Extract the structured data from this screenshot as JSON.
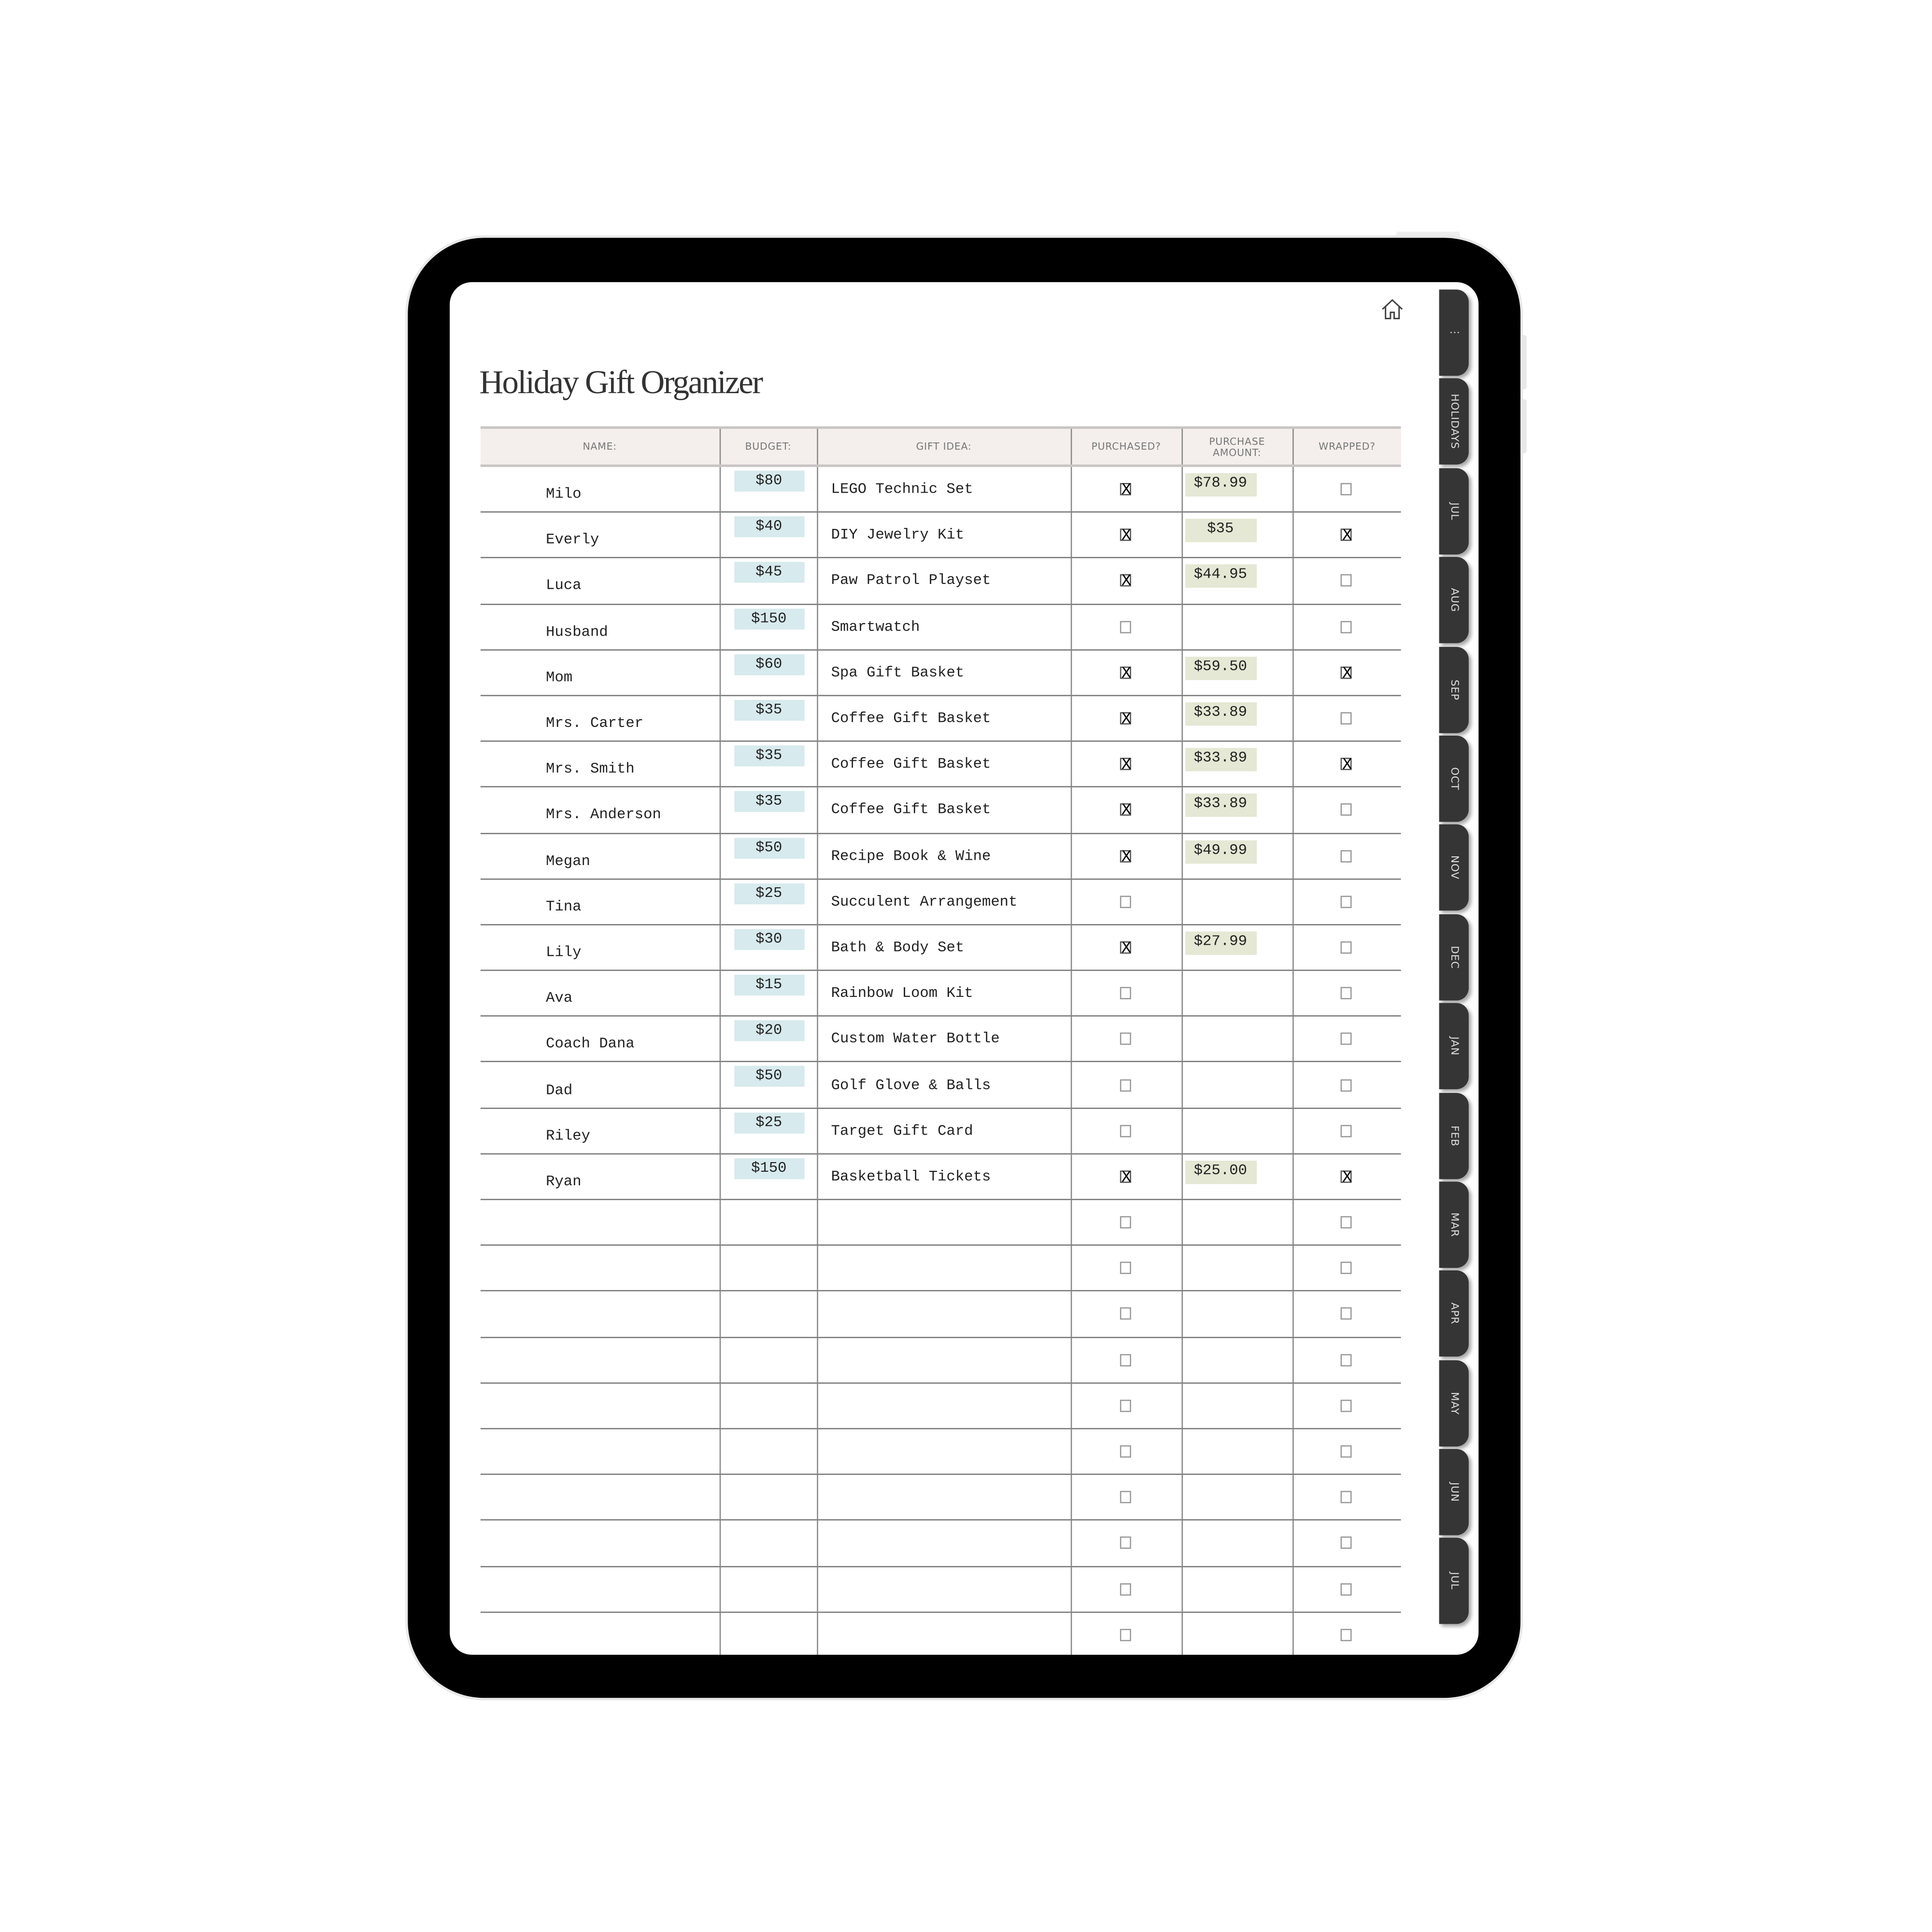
{
  "title": "Holiday Gift Organizer",
  "icons": {
    "home": "home-icon",
    "menu": "more-dots-icon"
  },
  "colors": {
    "budget_chip": "#d7eaee",
    "amount_chip": "#e4e8d4",
    "header_bg": "#f4eeec",
    "tab_bg": "#353535"
  },
  "tabs": [
    "⋮",
    "HOLIDAYS",
    "JUL",
    "AUG",
    "SEP",
    "OCT",
    "NOV",
    "DEC",
    "JAN",
    "FEB",
    "MAR",
    "APR",
    "MAY",
    "JUN",
    "JUL"
  ],
  "table": {
    "headers": {
      "name": "NAME:",
      "budget": "BUDGET:",
      "gift": "GIFT IDEA:",
      "purchased": "PURCHASED?",
      "amount_line1": "PURCHASE",
      "amount_line2": "AMOUNT:",
      "wrapped": "WRAPPED?"
    },
    "checkmark": "X",
    "rows": [
      {
        "name": "Milo",
        "budget": "$80",
        "gift": "LEGO Technic Set",
        "purchased": true,
        "amount": "$78.99",
        "wrapped": false
      },
      {
        "name": "Everly",
        "budget": "$40",
        "gift": "DIY Jewelry Kit",
        "purchased": true,
        "amount": "$35",
        "wrapped": true
      },
      {
        "name": "Luca",
        "budget": "$45",
        "gift": "Paw Patrol Playset",
        "purchased": true,
        "amount": "$44.95",
        "wrapped": false
      },
      {
        "name": "Husband",
        "budget": "$150",
        "gift": "Smartwatch",
        "purchased": false,
        "amount": "",
        "wrapped": false
      },
      {
        "name": "Mom",
        "budget": "$60",
        "gift": "Spa Gift Basket",
        "purchased": true,
        "amount": "$59.50",
        "wrapped": true
      },
      {
        "name": "Mrs. Carter",
        "budget": "$35",
        "gift": "Coffee Gift Basket",
        "purchased": true,
        "amount": "$33.89",
        "wrapped": false
      },
      {
        "name": "Mrs. Smith",
        "budget": "$35",
        "gift": "Coffee Gift Basket",
        "purchased": true,
        "amount": "$33.89",
        "wrapped": true
      },
      {
        "name": "Mrs. Anderson",
        "budget": "$35",
        "gift": "Coffee Gift Basket",
        "purchased": true,
        "amount": "$33.89",
        "wrapped": false
      },
      {
        "name": "Megan",
        "budget": "$50",
        "gift": "Recipe Book & Wine",
        "purchased": true,
        "amount": "$49.99",
        "wrapped": false
      },
      {
        "name": "Tina",
        "budget": "$25",
        "gift": "Succulent Arrangement",
        "purchased": false,
        "amount": "",
        "wrapped": false
      },
      {
        "name": "Lily",
        "budget": "$30",
        "gift": "Bath & Body Set",
        "purchased": true,
        "amount": "$27.99",
        "wrapped": false
      },
      {
        "name": "Ava",
        "budget": "$15",
        "gift": "Rainbow Loom Kit",
        "purchased": false,
        "amount": "",
        "wrapped": false
      },
      {
        "name": "Coach Dana",
        "budget": "$20",
        "gift": "Custom Water Bottle",
        "purchased": false,
        "amount": "",
        "wrapped": false
      },
      {
        "name": "Dad",
        "budget": "$50",
        "gift": "Golf Glove & Balls",
        "purchased": false,
        "amount": "",
        "wrapped": false
      },
      {
        "name": "Riley",
        "budget": "$25",
        "gift": "Target Gift Card",
        "purchased": false,
        "amount": "",
        "wrapped": false
      },
      {
        "name": "Ryan",
        "budget": "$150",
        "gift": "Basketball Tickets",
        "purchased": true,
        "amount": "$25.00",
        "wrapped": true
      },
      {
        "name": "",
        "budget": "",
        "gift": "",
        "purchased": false,
        "amount": "",
        "wrapped": false
      },
      {
        "name": "",
        "budget": "",
        "gift": "",
        "purchased": false,
        "amount": "",
        "wrapped": false
      },
      {
        "name": "",
        "budget": "",
        "gift": "",
        "purchased": false,
        "amount": "",
        "wrapped": false
      },
      {
        "name": "",
        "budget": "",
        "gift": "",
        "purchased": false,
        "amount": "",
        "wrapped": false
      },
      {
        "name": "",
        "budget": "",
        "gift": "",
        "purchased": false,
        "amount": "",
        "wrapped": false
      },
      {
        "name": "",
        "budget": "",
        "gift": "",
        "purchased": false,
        "amount": "",
        "wrapped": false
      },
      {
        "name": "",
        "budget": "",
        "gift": "",
        "purchased": false,
        "amount": "",
        "wrapped": false
      },
      {
        "name": "",
        "budget": "",
        "gift": "",
        "purchased": false,
        "amount": "",
        "wrapped": false
      },
      {
        "name": "",
        "budget": "",
        "gift": "",
        "purchased": false,
        "amount": "",
        "wrapped": false
      },
      {
        "name": "",
        "budget": "",
        "gift": "",
        "purchased": false,
        "amount": "",
        "wrapped": false
      },
      {
        "name": "",
        "budget": "",
        "gift": "",
        "purchased": false,
        "amount": "",
        "wrapped": false
      },
      {
        "name": "",
        "budget": "",
        "gift": "",
        "purchased": false,
        "amount": "",
        "wrapped": false
      },
      {
        "name": "",
        "budget": "",
        "gift": "",
        "purchased": false,
        "amount": "",
        "wrapped": false
      },
      {
        "name": "",
        "budget": "",
        "gift": "",
        "purchased": false,
        "amount": "",
        "wrapped": false
      },
      {
        "name": "",
        "budget": "",
        "gift": "",
        "purchased": false,
        "amount": "",
        "wrapped": false
      },
      {
        "name": "",
        "budget": "",
        "gift": "",
        "purchased": false,
        "amount": "",
        "wrapped": false
      }
    ]
  }
}
